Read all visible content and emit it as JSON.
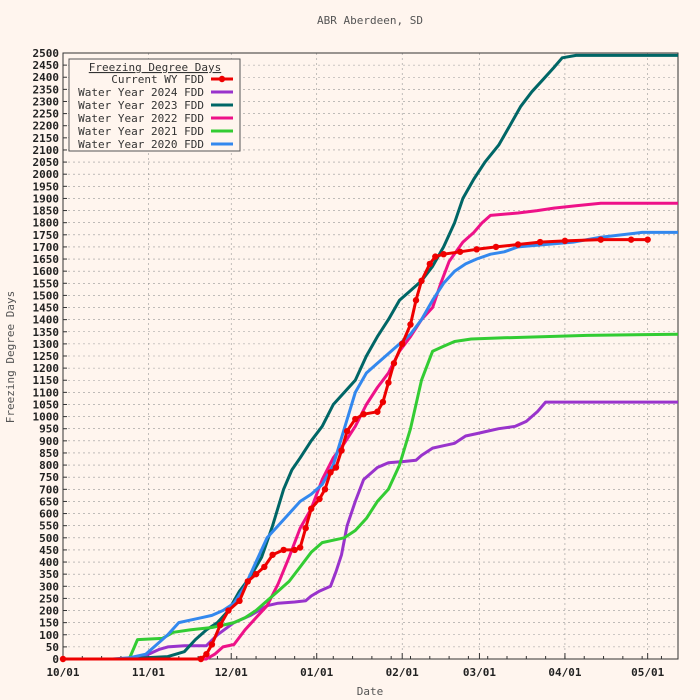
{
  "chart_data": {
    "type": "line",
    "title": "ABR Aberdeen, SD",
    "xlabel": "Date",
    "ylabel": "Freezing Degree Days",
    "x_domain_days": [
      0,
      223
    ],
    "ylim": [
      0,
      2500
    ],
    "y_tick_step": 50,
    "x_ticks": [
      {
        "label": "10/01",
        "day": 0
      },
      {
        "label": "11/01",
        "day": 31
      },
      {
        "label": "12/01",
        "day": 61
      },
      {
        "label": "01/01",
        "day": 92
      },
      {
        "label": "02/01",
        "day": 123
      },
      {
        "label": "03/01",
        "day": 151
      },
      {
        "label": "04/01",
        "day": 182
      },
      {
        "label": "05/01",
        "day": 212
      }
    ],
    "grid": true,
    "legend": {
      "title": "Freezing Degree Days",
      "placement": "top-left"
    },
    "series": [
      {
        "name": "Current WY FDD",
        "color": "#ee0000",
        "markers": true,
        "points": [
          [
            0,
            0
          ],
          [
            50,
            0
          ],
          [
            52,
            20
          ],
          [
            54,
            60
          ],
          [
            57,
            140
          ],
          [
            60,
            200
          ],
          [
            64,
            240
          ],
          [
            67,
            320
          ],
          [
            70,
            350
          ],
          [
            73,
            380
          ],
          [
            76,
            430
          ],
          [
            80,
            450
          ],
          [
            84,
            450
          ],
          [
            86,
            460
          ],
          [
            88,
            540
          ],
          [
            90,
            620
          ],
          [
            93,
            660
          ],
          [
            95,
            700
          ],
          [
            97,
            770
          ],
          [
            99,
            790
          ],
          [
            101,
            860
          ],
          [
            103,
            940
          ],
          [
            106,
            990
          ],
          [
            109,
            1010
          ],
          [
            114,
            1020
          ],
          [
            116,
            1060
          ],
          [
            118,
            1140
          ],
          [
            120,
            1220
          ],
          [
            123,
            1300
          ],
          [
            126,
            1380
          ],
          [
            128,
            1480
          ],
          [
            130,
            1560
          ],
          [
            133,
            1630
          ],
          [
            135,
            1660
          ],
          [
            138,
            1670
          ],
          [
            144,
            1680
          ],
          [
            150,
            1690
          ],
          [
            157,
            1700
          ],
          [
            165,
            1710
          ],
          [
            173,
            1720
          ],
          [
            182,
            1725
          ],
          [
            195,
            1730
          ],
          [
            206,
            1730
          ],
          [
            212,
            1730
          ]
        ]
      },
      {
        "name": "Water Year 2024 FDD",
        "color": "#9933cc",
        "markers": false,
        "points": [
          [
            0,
            0
          ],
          [
            28,
            0
          ],
          [
            31,
            20
          ],
          [
            35,
            40
          ],
          [
            38,
            50
          ],
          [
            44,
            55
          ],
          [
            52,
            55
          ],
          [
            56,
            100
          ],
          [
            62,
            150
          ],
          [
            68,
            180
          ],
          [
            74,
            220
          ],
          [
            78,
            230
          ],
          [
            84,
            235
          ],
          [
            88,
            240
          ],
          [
            90,
            260
          ],
          [
            93,
            280
          ],
          [
            97,
            300
          ],
          [
            99,
            360
          ],
          [
            101,
            430
          ],
          [
            103,
            550
          ],
          [
            106,
            650
          ],
          [
            109,
            740
          ],
          [
            114,
            790
          ],
          [
            118,
            810
          ],
          [
            124,
            815
          ],
          [
            128,
            820
          ],
          [
            130,
            840
          ],
          [
            134,
            870
          ],
          [
            138,
            880
          ],
          [
            142,
            890
          ],
          [
            146,
            920
          ],
          [
            150,
            930
          ],
          [
            154,
            940
          ],
          [
            158,
            950
          ],
          [
            164,
            960
          ],
          [
            168,
            980
          ],
          [
            172,
            1020
          ],
          [
            175,
            1060
          ],
          [
            185,
            1060
          ],
          [
            200,
            1060
          ],
          [
            223,
            1060
          ]
        ]
      },
      {
        "name": "Water Year 2023 FDD",
        "color": "#006666",
        "markers": false,
        "points": [
          [
            0,
            0
          ],
          [
            20,
            0
          ],
          [
            30,
            5
          ],
          [
            38,
            10
          ],
          [
            44,
            30
          ],
          [
            48,
            80
          ],
          [
            52,
            120
          ],
          [
            56,
            150
          ],
          [
            60,
            200
          ],
          [
            64,
            280
          ],
          [
            68,
            340
          ],
          [
            72,
            420
          ],
          [
            76,
            550
          ],
          [
            80,
            700
          ],
          [
            83,
            780
          ],
          [
            86,
            830
          ],
          [
            90,
            900
          ],
          [
            94,
            960
          ],
          [
            98,
            1050
          ],
          [
            102,
            1100
          ],
          [
            106,
            1150
          ],
          [
            110,
            1250
          ],
          [
            114,
            1330
          ],
          [
            118,
            1400
          ],
          [
            122,
            1480
          ],
          [
            126,
            1520
          ],
          [
            130,
            1560
          ],
          [
            134,
            1620
          ],
          [
            138,
            1700
          ],
          [
            142,
            1800
          ],
          [
            145,
            1900
          ],
          [
            149,
            1980
          ],
          [
            153,
            2050
          ],
          [
            158,
            2120
          ],
          [
            162,
            2200
          ],
          [
            166,
            2280
          ],
          [
            170,
            2340
          ],
          [
            174,
            2390
          ],
          [
            178,
            2440
          ],
          [
            181,
            2480
          ],
          [
            186,
            2490
          ],
          [
            223,
            2490
          ]
        ]
      },
      {
        "name": "Water Year 2022 FDD",
        "color": "#ee1188",
        "markers": false,
        "points": [
          [
            0,
            0
          ],
          [
            52,
            0
          ],
          [
            55,
            20
          ],
          [
            58,
            50
          ],
          [
            62,
            60
          ],
          [
            66,
            120
          ],
          [
            70,
            170
          ],
          [
            74,
            220
          ],
          [
            78,
            310
          ],
          [
            82,
            420
          ],
          [
            86,
            540
          ],
          [
            90,
            620
          ],
          [
            94,
            740
          ],
          [
            98,
            830
          ],
          [
            102,
            890
          ],
          [
            106,
            960
          ],
          [
            110,
            1050
          ],
          [
            114,
            1120
          ],
          [
            118,
            1180
          ],
          [
            122,
            1270
          ],
          [
            126,
            1330
          ],
          [
            130,
            1400
          ],
          [
            134,
            1450
          ],
          [
            137,
            1550
          ],
          [
            140,
            1640
          ],
          [
            145,
            1720
          ],
          [
            149,
            1760
          ],
          [
            152,
            1800
          ],
          [
            155,
            1830
          ],
          [
            165,
            1840
          ],
          [
            172,
            1850
          ],
          [
            178,
            1860
          ],
          [
            186,
            1870
          ],
          [
            195,
            1880
          ],
          [
            223,
            1880
          ]
        ]
      },
      {
        "name": "Water Year 2021 FDD",
        "color": "#33cc33",
        "markers": false,
        "points": [
          [
            0,
            0
          ],
          [
            24,
            0
          ],
          [
            27,
            80
          ],
          [
            36,
            85
          ],
          [
            40,
            110
          ],
          [
            46,
            120
          ],
          [
            54,
            130
          ],
          [
            58,
            140
          ],
          [
            62,
            150
          ],
          [
            66,
            170
          ],
          [
            70,
            200
          ],
          [
            74,
            240
          ],
          [
            78,
            280
          ],
          [
            82,
            320
          ],
          [
            86,
            380
          ],
          [
            90,
            440
          ],
          [
            94,
            480
          ],
          [
            98,
            490
          ],
          [
            102,
            500
          ],
          [
            106,
            530
          ],
          [
            110,
            580
          ],
          [
            114,
            650
          ],
          [
            118,
            700
          ],
          [
            122,
            800
          ],
          [
            126,
            950
          ],
          [
            130,
            1150
          ],
          [
            134,
            1270
          ],
          [
            138,
            1290
          ],
          [
            142,
            1310
          ],
          [
            148,
            1320
          ],
          [
            160,
            1325
          ],
          [
            175,
            1330
          ],
          [
            190,
            1335
          ],
          [
            223,
            1340
          ]
        ]
      },
      {
        "name": "Water Year 2020 FDD",
        "color": "#3388ee",
        "markers": false,
        "points": [
          [
            0,
            0
          ],
          [
            18,
            0
          ],
          [
            24,
            5
          ],
          [
            30,
            20
          ],
          [
            34,
            60
          ],
          [
            38,
            100
          ],
          [
            42,
            150
          ],
          [
            46,
            160
          ],
          [
            50,
            170
          ],
          [
            54,
            180
          ],
          [
            58,
            200
          ],
          [
            62,
            230
          ],
          [
            66,
            300
          ],
          [
            70,
            400
          ],
          [
            74,
            500
          ],
          [
            78,
            550
          ],
          [
            82,
            600
          ],
          [
            86,
            650
          ],
          [
            90,
            680
          ],
          [
            94,
            720
          ],
          [
            98,
            800
          ],
          [
            102,
            950
          ],
          [
            106,
            1100
          ],
          [
            110,
            1180
          ],
          [
            114,
            1220
          ],
          [
            118,
            1260
          ],
          [
            122,
            1300
          ],
          [
            126,
            1340
          ],
          [
            130,
            1400
          ],
          [
            134,
            1480
          ],
          [
            138,
            1550
          ],
          [
            142,
            1600
          ],
          [
            146,
            1630
          ],
          [
            150,
            1650
          ],
          [
            155,
            1670
          ],
          [
            160,
            1680
          ],
          [
            165,
            1700
          ],
          [
            175,
            1710
          ],
          [
            185,
            1720
          ],
          [
            195,
            1740
          ],
          [
            210,
            1760
          ],
          [
            223,
            1760
          ]
        ]
      }
    ]
  }
}
